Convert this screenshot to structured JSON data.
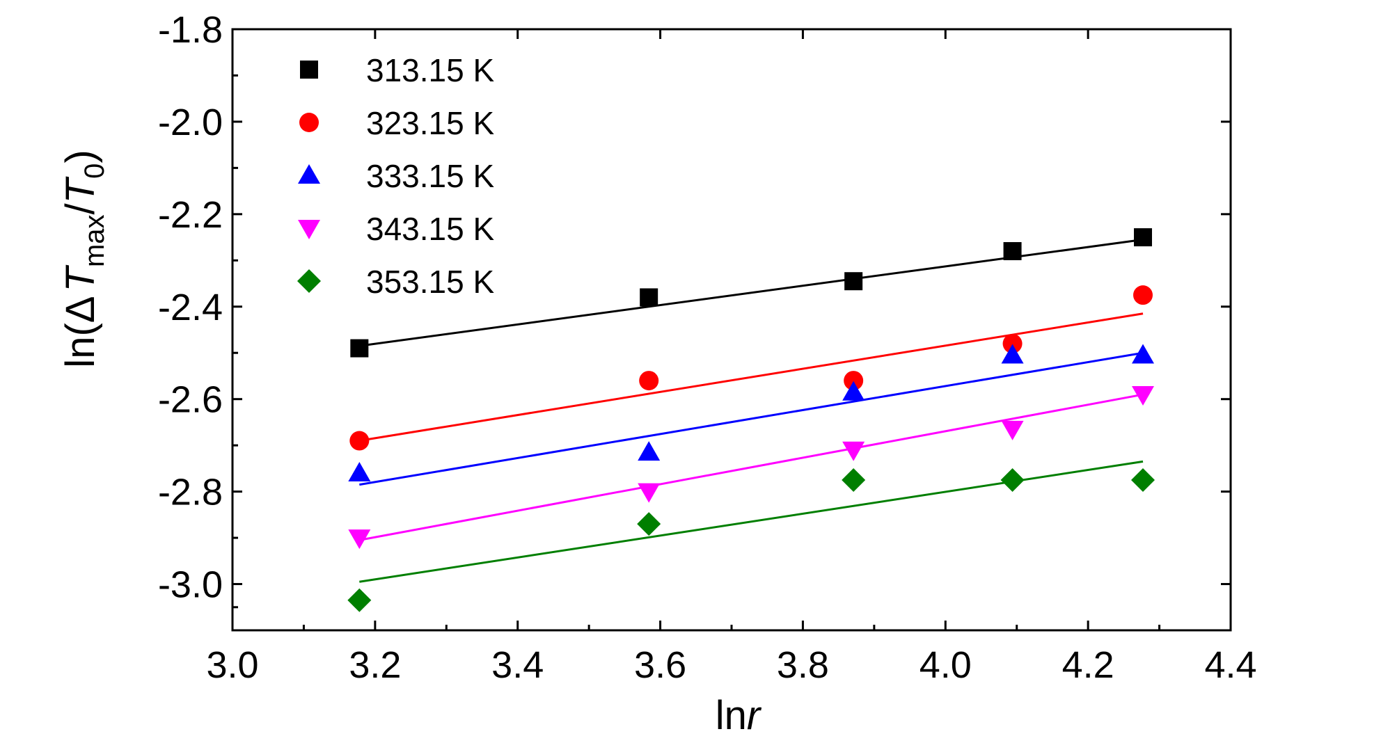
{
  "chart_data": {
    "type": "scatter",
    "xlabel": "lnr",
    "ylabel": "ln(ΔTmax/T0)",
    "xlabel_parts": {
      "base": "ln",
      "italic": "r"
    },
    "ylabel_parts": {
      "prefix": "ln(",
      "delta": "Δ",
      "var1": "T",
      "sub1": "max",
      "slash": "/",
      "var2": "T",
      "sub2": "0",
      "suffix": ")"
    },
    "xlim": [
      3.0,
      4.4
    ],
    "ylim": [
      -3.1,
      -1.8
    ],
    "x_ticks": [
      3.0,
      3.2,
      3.4,
      3.6,
      3.8,
      4.0,
      4.2,
      4.4
    ],
    "x_tick_labels": [
      "3.0",
      "3.2",
      "3.4",
      "3.6",
      "3.8",
      "4.0",
      "4.2",
      "4.4"
    ],
    "y_ticks": [
      -3.0,
      -2.8,
      -2.6,
      -2.4,
      -2.2,
      -2.0,
      -1.8
    ],
    "y_tick_labels": [
      "-3.0",
      "-2.8",
      "-2.6",
      "-2.4",
      "-2.2",
      "-2.0",
      "-1.8"
    ],
    "grid": false,
    "legend_position": "top-left",
    "series": [
      {
        "name": "313.15 K",
        "color": "#000000",
        "marker": "square",
        "x": [
          3.178,
          3.584,
          3.871,
          4.094,
          4.277
        ],
        "y": [
          -2.49,
          -2.38,
          -2.345,
          -2.28,
          -2.25
        ],
        "fit": {
          "x": [
            3.178,
            4.277
          ],
          "y": [
            -2.485,
            -2.255
          ]
        }
      },
      {
        "name": "323.15 K",
        "color": "#ff0000",
        "marker": "circle",
        "x": [
          3.178,
          3.584,
          3.871,
          4.094,
          4.277
        ],
        "y": [
          -2.69,
          -2.56,
          -2.56,
          -2.48,
          -2.375
        ],
        "fit": {
          "x": [
            3.178,
            4.277
          ],
          "y": [
            -2.69,
            -2.415
          ]
        }
      },
      {
        "name": "333.15 K",
        "color": "#0000ff",
        "marker": "triangle-up",
        "x": [
          3.178,
          3.584,
          3.871,
          4.094,
          4.277
        ],
        "y": [
          -2.76,
          -2.715,
          -2.585,
          -2.505,
          -2.505
        ],
        "fit": {
          "x": [
            3.178,
            4.277
          ],
          "y": [
            -2.785,
            -2.5
          ]
        }
      },
      {
        "name": "343.15 K",
        "color": "#ff00ff",
        "marker": "triangle-down",
        "x": [
          3.178,
          3.584,
          3.871,
          4.094,
          4.277
        ],
        "y": [
          -2.9,
          -2.8,
          -2.71,
          -2.665,
          -2.59
        ],
        "fit": {
          "x": [
            3.178,
            4.277
          ],
          "y": [
            -2.905,
            -2.59
          ]
        }
      },
      {
        "name": "353.15 K",
        "color": "#007f00",
        "marker": "diamond",
        "x": [
          3.178,
          3.584,
          3.871,
          4.094,
          4.277
        ],
        "y": [
          -3.035,
          -2.87,
          -2.775,
          -2.775,
          -2.775
        ],
        "fit": {
          "x": [
            3.178,
            4.277
          ],
          "y": [
            -2.995,
            -2.735
          ]
        }
      }
    ]
  }
}
